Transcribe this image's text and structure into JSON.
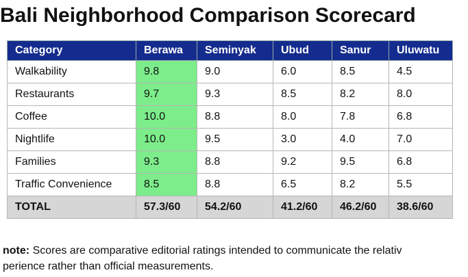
{
  "header": {
    "title": "Bali Neighborhood Comparison Scorecard"
  },
  "table": {
    "columns": [
      "Category",
      "Berawa",
      "Seminyak",
      "Ubud",
      "Sanur",
      "Uluwatu"
    ],
    "rows": [
      [
        "Walkability",
        "9.8",
        "9.0",
        "6.0",
        "8.5",
        "4.5"
      ],
      [
        "Restaurants",
        "9.7",
        "9.3",
        "8.5",
        "8.2",
        "8.0"
      ],
      [
        "Coffee",
        "10.0",
        "8.8",
        "8.0",
        "7.8",
        "6.8"
      ],
      [
        "Nightlife",
        "10.0",
        "9.5",
        "3.0",
        "4.0",
        "7.0"
      ],
      [
        "Families",
        "9.3",
        "8.8",
        "9.2",
        "9.5",
        "6.8"
      ],
      [
        "Traffic Convenience",
        "8.5",
        "8.8",
        "6.5",
        "8.2",
        "5.5"
      ]
    ],
    "total": [
      "TOTAL",
      "57.3/60",
      "54.2/60",
      "41.2/60",
      "46.2/60",
      "38.6/60"
    ]
  },
  "note": {
    "label": "note:",
    "lines": [
      "Scores are comparative editorial ratings intended to communicate the relativ",
      "perience rather than official measurements."
    ]
  }
}
